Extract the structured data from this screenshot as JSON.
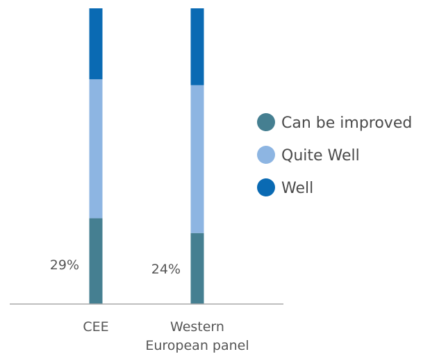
{
  "chart_data": {
    "type": "bar",
    "stacked": true,
    "normalized_percent": true,
    "categories": [
      "CEE",
      "Western European panel"
    ],
    "category_label_lines": [
      [
        "CEE"
      ],
      [
        "Western",
        "European panel"
      ]
    ],
    "ylim": [
      0,
      100
    ],
    "series": [
      {
        "name": "Can be improved",
        "values": [
          29,
          24
        ],
        "color": "#457f91",
        "labels": [
          "29%",
          "24%"
        ]
      },
      {
        "name": "Quite Well",
        "values": [
          47,
          50
        ],
        "color": "#8db5e2"
      },
      {
        "name": "Well",
        "values": [
          24,
          26
        ],
        "color": "#0a6ab3"
      }
    ],
    "legend_position": "right",
    "grid": false
  }
}
